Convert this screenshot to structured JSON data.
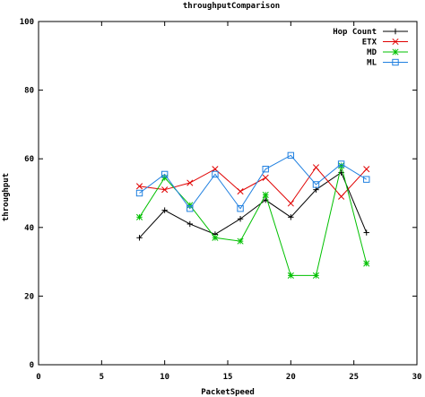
{
  "chart_data": {
    "type": "line",
    "title": "throughputComparison",
    "xlabel": "PacketSpeed",
    "ylabel": "throughput",
    "xlim": [
      0,
      30
    ],
    "ylim": [
      0,
      100
    ],
    "xticks": [
      "0",
      "5",
      "10",
      "15",
      "20",
      "25",
      "30"
    ],
    "yticks": [
      "0",
      "20",
      "40",
      "60",
      "80",
      "100"
    ],
    "grid": false,
    "legend_position": "top-right",
    "series": [
      {
        "name": "Hop Count",
        "color": "#000000",
        "marker": "plus",
        "x": [
          8,
          10,
          12,
          14,
          16,
          18,
          20,
          22,
          24,
          26
        ],
        "y": [
          37,
          45,
          41,
          38,
          42.5,
          48,
          43,
          51,
          56,
          38.5
        ]
      },
      {
        "name": "ETX",
        "color": "#e00000",
        "marker": "cross",
        "x": [
          8,
          10,
          12,
          14,
          16,
          18,
          20,
          22,
          24,
          26
        ],
        "y": [
          52,
          51,
          53,
          57,
          50.5,
          54.5,
          47,
          57.5,
          49,
          57
        ]
      },
      {
        "name": "MD",
        "color": "#00c000",
        "marker": "star",
        "x": [
          8,
          10,
          12,
          14,
          16,
          18,
          20,
          22,
          24,
          26
        ],
        "y": [
          43,
          54.5,
          46.5,
          37,
          36,
          49.5,
          26,
          26,
          58,
          29.5
        ]
      },
      {
        "name": "ML",
        "color": "#2080e0",
        "marker": "square",
        "x": [
          8,
          10,
          12,
          14,
          16,
          18,
          20,
          22,
          24,
          26
        ],
        "y": [
          50,
          55.5,
          45.5,
          55.5,
          45.5,
          57,
          61,
          52.5,
          58.5,
          54
        ]
      }
    ]
  }
}
